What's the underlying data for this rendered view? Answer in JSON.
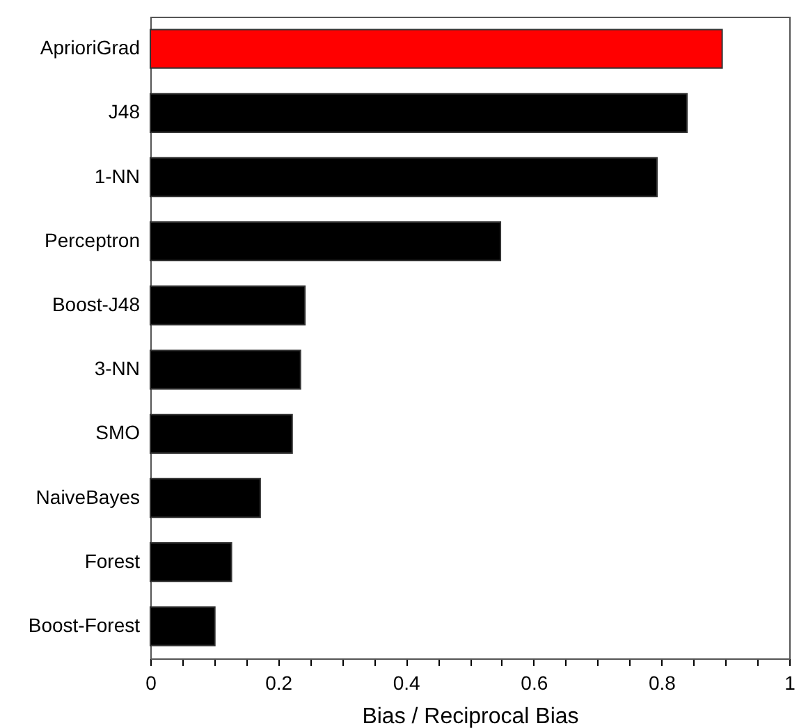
{
  "chart_data": {
    "type": "bar",
    "orientation": "horizontal",
    "xlabel": "Bias / Reciprocal Bias",
    "categories": [
      "AprioriGrad",
      "J48",
      "1-NN",
      "Perceptron",
      "Boost-J48",
      "3-NN",
      "SMO",
      "NaiveBayes",
      "Forest",
      "Boost-Forest"
    ],
    "values": [
      0.895,
      0.84,
      0.793,
      0.548,
      0.242,
      0.235,
      0.222,
      0.172,
      0.127,
      0.101
    ],
    "colors": [
      "#ff0000",
      "#000000",
      "#000000",
      "#000000",
      "#000000",
      "#000000",
      "#000000",
      "#000000",
      "#000000",
      "#000000"
    ],
    "xlim": [
      0,
      1
    ],
    "xticks": [
      0,
      {
        "value": 0.05,
        "label": null
      },
      {
        "value": 0.1,
        "label": null
      },
      {
        "value": 0.15,
        "label": null
      },
      0.2,
      {
        "value": 0.25,
        "label": null
      },
      {
        "value": 0.3,
        "label": null
      },
      {
        "value": 0.35,
        "label": null
      },
      0.4,
      {
        "value": 0.45,
        "label": null
      },
      {
        "value": 0.5,
        "label": null
      },
      {
        "value": 0.55,
        "label": null
      },
      0.6,
      {
        "value": 0.65,
        "label": null
      },
      {
        "value": 0.7,
        "label": null
      },
      {
        "value": 0.75,
        "label": null
      },
      0.8,
      {
        "value": 0.85,
        "label": null
      },
      {
        "value": 0.9,
        "label": null
      },
      {
        "value": 0.95,
        "label": null
      },
      1
    ],
    "grid": false
  }
}
